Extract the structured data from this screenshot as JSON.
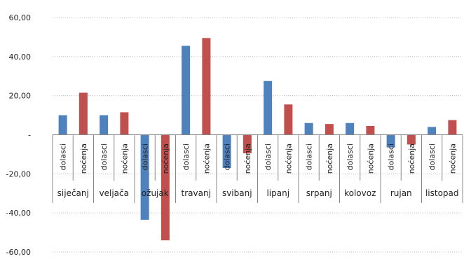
{
  "chart_data": {
    "type": "bar",
    "title": "",
    "xlabel": "",
    "ylabel": "",
    "ylim": [
      -60,
      60
    ],
    "y_ticks": [
      "60,00",
      "40,00",
      "20,00",
      "-",
      "-20,00",
      "-40,00",
      "-60,00"
    ],
    "y_tick_values": [
      60,
      40,
      20,
      0,
      -20,
      -40,
      -60
    ],
    "grid": "horizontal dotted",
    "months": [
      "siječanj",
      "veljača",
      "ožujak",
      "travanj",
      "svibanj",
      "lipanj",
      "srpanj",
      "kolovoz",
      "rujan",
      "listopad"
    ],
    "sub_categories": [
      "dolasci",
      "noćenja"
    ],
    "series": [
      {
        "color": "#4f81bd",
        "values": [
          10.0,
          10.0,
          -43.5,
          45.5,
          -17.0,
          27.5,
          6.0,
          6.0,
          -6.5,
          4.0
        ]
      },
      {
        "color": "#c0504d",
        "values": [
          21.5,
          11.5,
          -54.0,
          49.5,
          -9.5,
          15.5,
          5.5,
          4.5,
          -5.0,
          7.5
        ]
      }
    ]
  }
}
